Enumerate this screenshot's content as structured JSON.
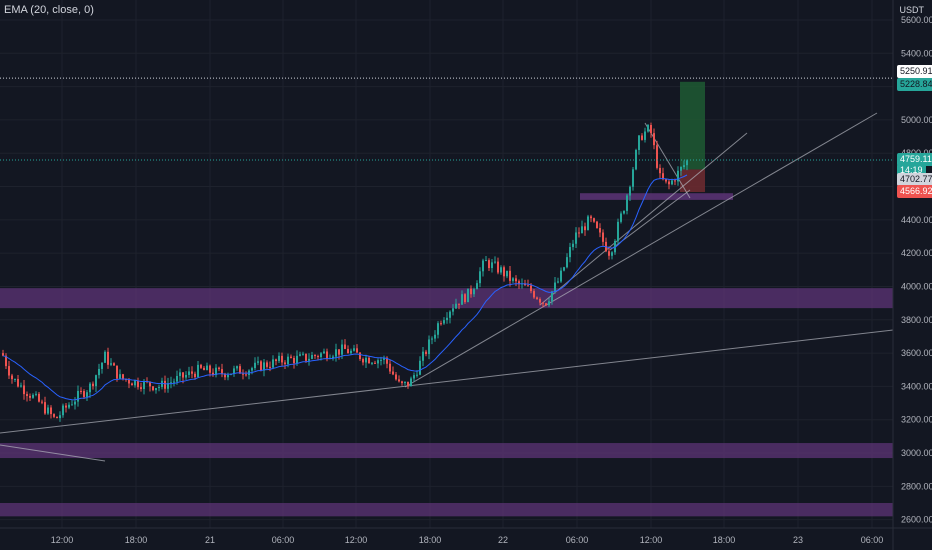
{
  "indicator_label": "EMA (20, close, 0)",
  "currency": "USDT",
  "y_axis": {
    "labels": [
      "5600.00",
      "5400.00",
      "5200.00",
      "5000.00",
      "4800.00",
      "4600.00",
      "4400.00",
      "4200.00",
      "4000.00",
      "3800.00",
      "3600.00",
      "3400.00",
      "3200.00",
      "3000.00",
      "2800.00",
      "2600.00"
    ],
    "values": [
      5600,
      5400,
      5200,
      5000,
      4800,
      4600,
      4400,
      4200,
      4000,
      3800,
      3600,
      3400,
      3200,
      3000,
      2800,
      2600
    ]
  },
  "x_axis": {
    "labels": [
      "12:00",
      "18:00",
      "21",
      "06:00",
      "12:00",
      "18:00",
      "22",
      "06:00",
      "12:00",
      "18:00",
      "23",
      "06:00"
    ]
  },
  "price_tags": {
    "upper_level": "5250.91",
    "target": "5228.84",
    "current_price": "4759.11",
    "countdown": "14:19",
    "entry": "4702.77",
    "stop": "4566.92"
  },
  "colors": {
    "background": "#131722",
    "up_candle": "#26a69a",
    "down_candle": "#ef5350",
    "ema": "#2962ff",
    "zone": "#6a3d8a",
    "target_zone": "#1e5a33",
    "stop_zone": "#6b2a30"
  },
  "chart_data": {
    "type": "candlestick",
    "indicator": "EMA (20, close, 0)",
    "ylim": [
      2550,
      5720
    ],
    "price_scale": "linear",
    "support_resistance_zones": [
      [
        3870,
        3990
      ],
      [
        2970,
        3060
      ],
      [
        2620,
        2700
      ]
    ],
    "horizontal_levels": [
      5250.91,
      4759.11
    ],
    "position": {
      "entry": 4702.77,
      "stop": 4566.92,
      "target": 5228.84
    },
    "last_price": 4759.11,
    "session_labels": [
      "12:00",
      "18:00",
      "21",
      "06:00",
      "12:00",
      "18:00",
      "22",
      "06:00",
      "12:00",
      "18:00",
      "23",
      "06:00"
    ]
  }
}
